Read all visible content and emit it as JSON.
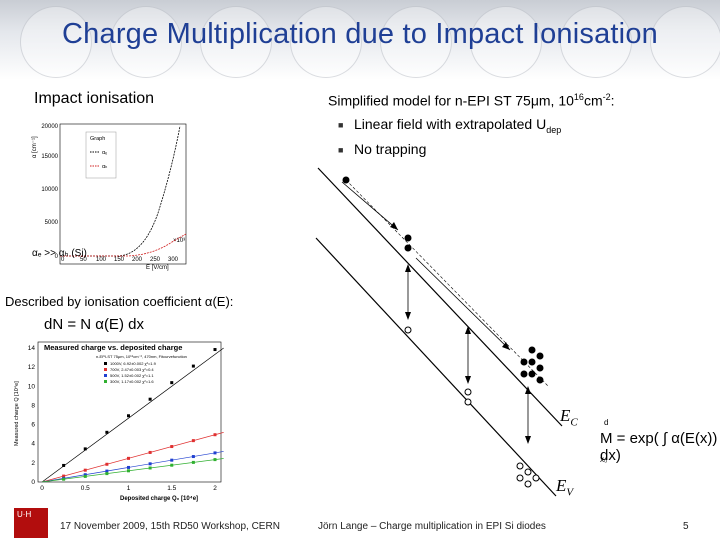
{
  "title": "Charge Multiplication due to Impact Ionisation",
  "left": {
    "heading": "Impact ionisation",
    "described_by": "Described by ionisation coefficient α(E):",
    "formula": "dN = N α(E) dx",
    "alpha_compare": "αₑ >> αₕ (Si)",
    "plot1": {
      "legend_title": "Graph",
      "legend_e": "αₑ",
      "legend_h": "αₕ",
      "y_axis_label": "α [cm⁻¹]",
      "x_axis_label": "E [V/cm]",
      "x_scale": "×10³",
      "y_ticks": [
        "20000",
        "15000",
        "10000",
        "5000",
        "0"
      ],
      "x_ticks": [
        "0",
        "50",
        "100",
        "150",
        "200",
        "250",
        "300"
      ]
    },
    "plot2": {
      "title": "Measured charge vs. deposited charge",
      "y_axis_label": "Measured charge Q [10⁴e]",
      "x_axis_label": "Deposited charge Q₀ [10⁴e]",
      "y_ticks": [
        "14",
        "12",
        "10",
        "8",
        "6",
        "4",
        "2",
        "0"
      ],
      "x_ticks": [
        "0",
        "0.5",
        "1",
        "1.5",
        "2"
      ],
      "legend_head": "n-EPI-ST 75µm, 10¹⁶cm⁻², 470nm, Fitcurvefunction",
      "legend": [
        "1000V, 6.92±0.002  χ²=1.9",
        "700V, 2.47±0.003  χ²=0.4",
        "500V, 1.52±0.002  χ²=1.1",
        "300V, 1.17±0.002  χ²=1.6"
      ]
    }
  },
  "right": {
    "heading": "Simplified model for n-EPI ST 75μm, 10",
    "heading_sup": "16",
    "heading_unit": "cm",
    "heading_unit_sup": "-2",
    "heading_end": ":",
    "bullet1": "Linear field with extrapolated U",
    "bullet1_sub": "dep",
    "bullet2": "No trapping",
    "label_ec": "E",
    "label_ec_sub": "C",
    "label_ev": "E",
    "label_ev_sub": "V",
    "formula": "M = exp( ∫ α(E(x)) dx)",
    "formula_upper": "d",
    "formula_lower": "x₀"
  },
  "footer": {
    "logo_text": "U·H",
    "date": "17 November 2009,  15th RD50 Workshop, CERN",
    "author": "Jörn Lange – Charge multiplication in EPI Si diodes",
    "page": "5"
  },
  "colors": {
    "title": "#1f3f95",
    "series_1000V": "#000000",
    "series_700V": "#e03030",
    "series_500V": "#2040d0",
    "series_300V": "#30b030"
  }
}
